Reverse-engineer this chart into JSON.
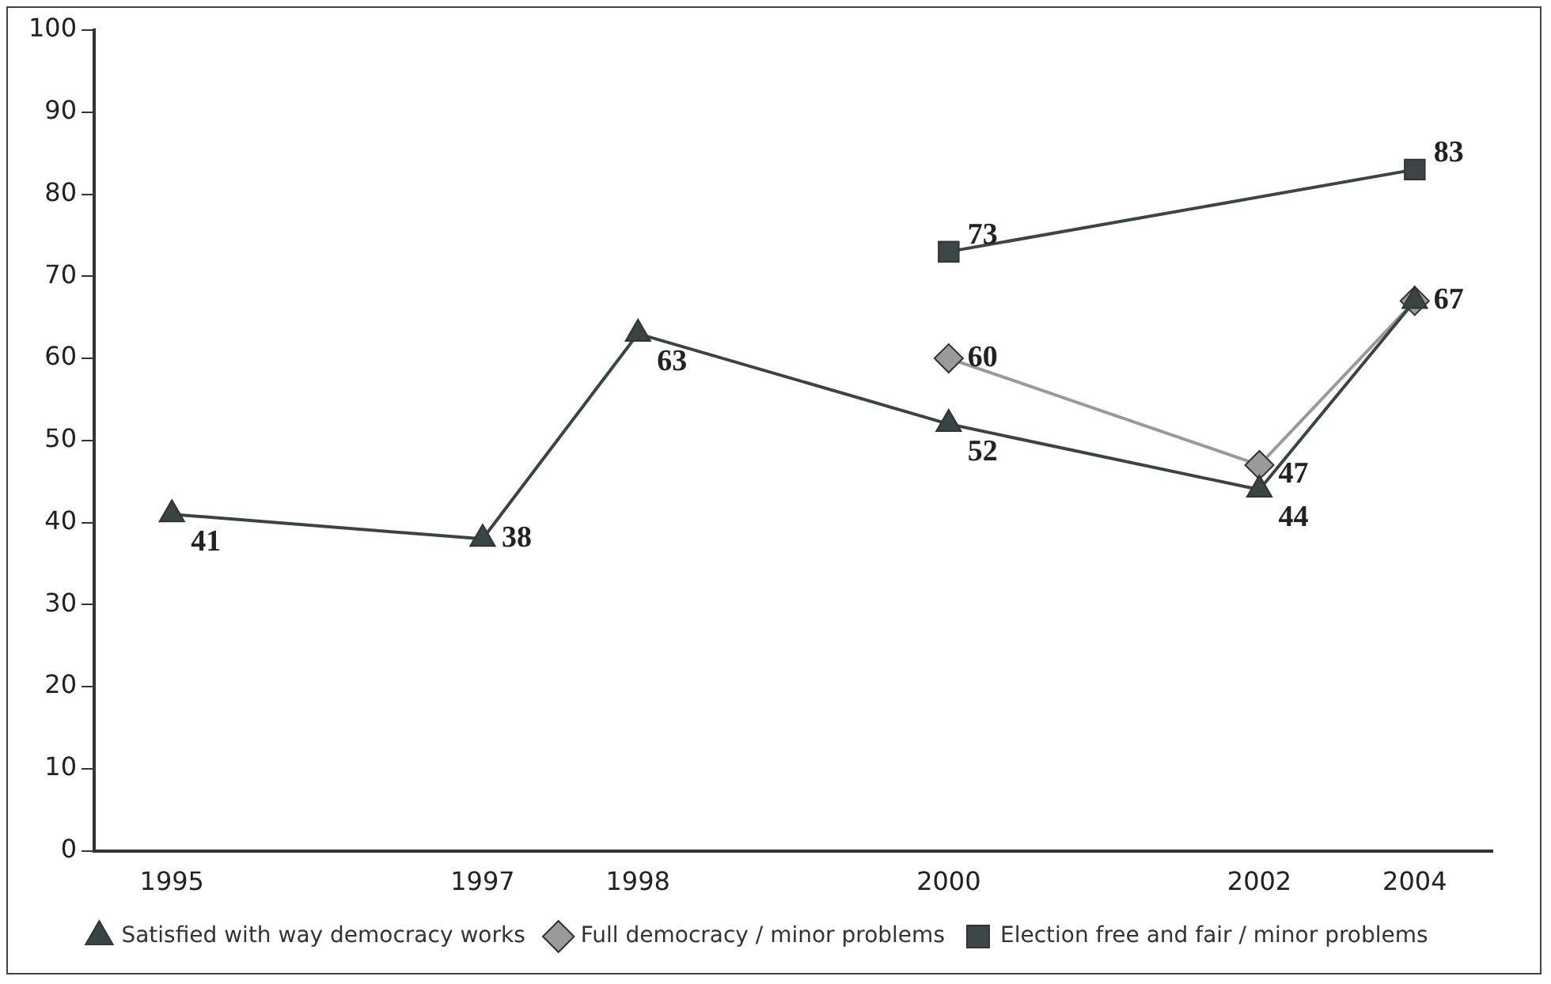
{
  "chart_data": {
    "type": "line",
    "categories": [
      "1995",
      null,
      "1997",
      "1998",
      null,
      "2000",
      null,
      "2002",
      "2004"
    ],
    "series": [
      {
        "name": "Satisfied with way democracy works",
        "color": "#3a4444",
        "marker": "triangle",
        "values": [
          41,
          null,
          38,
          63,
          null,
          52,
          null,
          44,
          67
        ],
        "value_labels": [
          "41",
          null,
          "38",
          "63",
          null,
          "52",
          null,
          "44",
          null
        ]
      },
      {
        "name": "Full democracy / minor problems",
        "color": "#9a9a9a",
        "marker": "diamond",
        "values": [
          null,
          null,
          null,
          null,
          null,
          60,
          null,
          47,
          67
        ],
        "value_labels": [
          null,
          null,
          null,
          null,
          null,
          "60",
          null,
          "47",
          "67"
        ]
      },
      {
        "name": "Election free and fair / minor problems",
        "color": "#3d4646",
        "marker": "square",
        "values": [
          null,
          null,
          null,
          null,
          null,
          73,
          null,
          null,
          83
        ],
        "value_labels": [
          null,
          null,
          null,
          null,
          null,
          "73",
          null,
          null,
          "83"
        ]
      }
    ],
    "ylim": [
      0,
      100
    ],
    "yticks": [
      0,
      10,
      20,
      30,
      40,
      50,
      60,
      70,
      80,
      90,
      100
    ],
    "grid": false,
    "legend": "bottom"
  }
}
